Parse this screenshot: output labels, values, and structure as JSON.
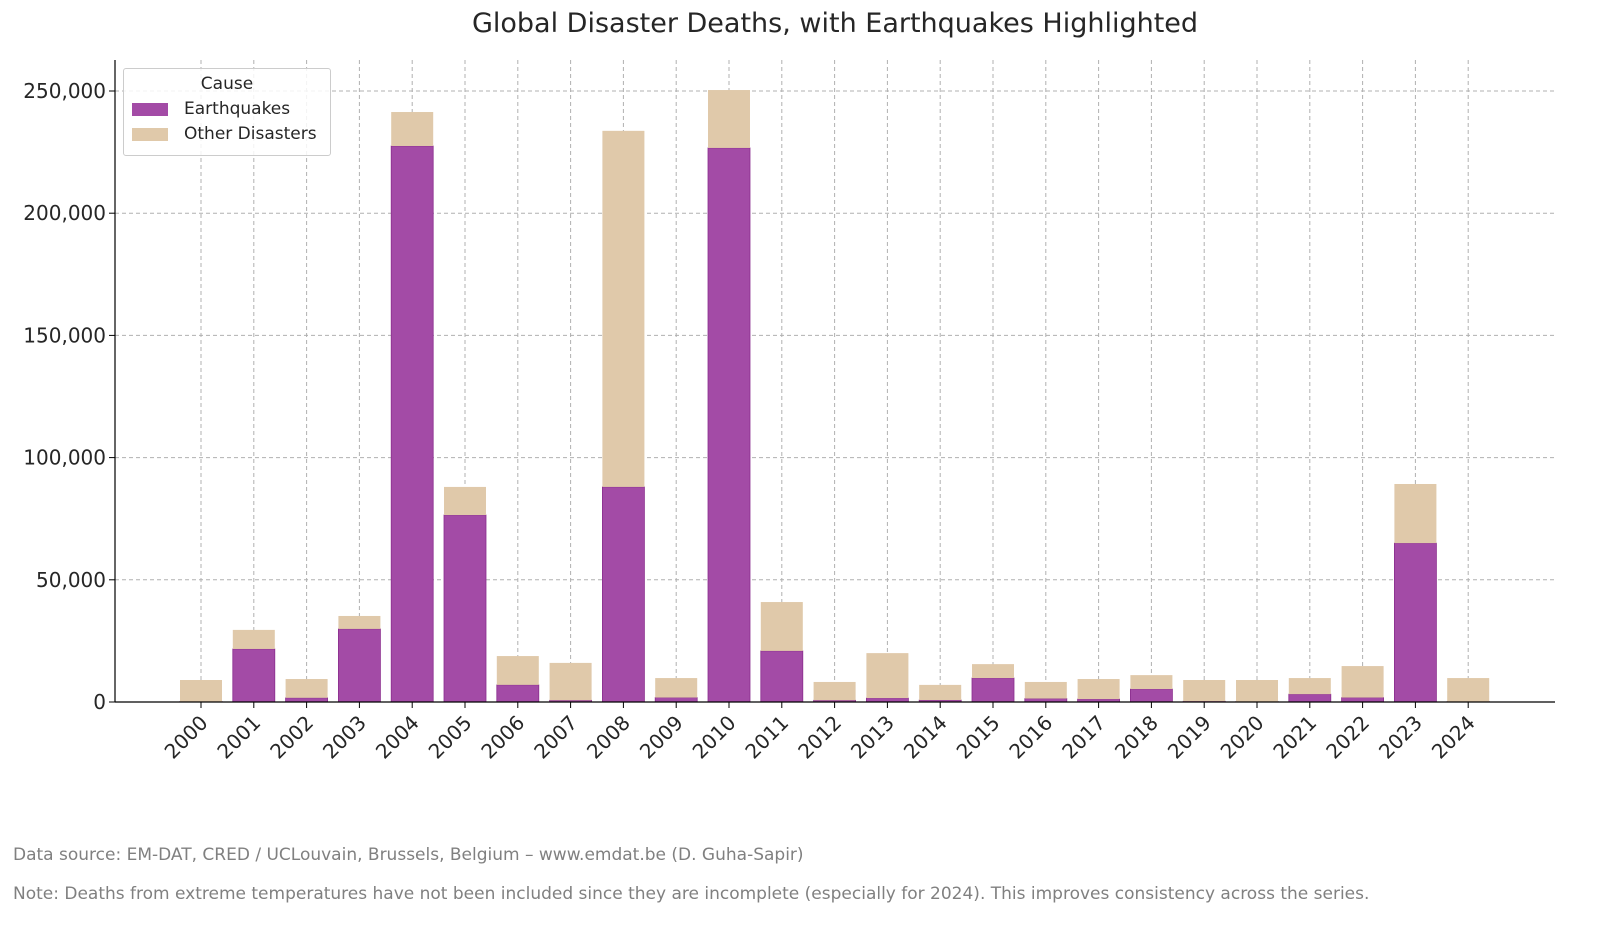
{
  "chart_data": {
    "type": "bar",
    "stacked": true,
    "title": "Global Disaster Deaths, with Earthquakes Highlighted",
    "xlabel": "",
    "ylabel": "",
    "ylim": [
      0,
      262000
    ],
    "yticks": [
      0,
      50000,
      100000,
      150000,
      200000,
      250000
    ],
    "ytick_labels": [
      "0",
      "50,000",
      "100,000",
      "150,000",
      "200,000",
      "250,000"
    ],
    "grid": true,
    "legend": {
      "title": "Cause",
      "placement": "top-left"
    },
    "categories": [
      "2000",
      "2001",
      "2002",
      "2003",
      "2004",
      "2005",
      "2006",
      "2007",
      "2008",
      "2009",
      "2010",
      "2011",
      "2012",
      "2013",
      "2014",
      "2015",
      "2016",
      "2017",
      "2018",
      "2019",
      "2020",
      "2021",
      "2022",
      "2023",
      "2024"
    ],
    "series": [
      {
        "name": "Earthquakes",
        "color": "#a34ba6",
        "values": [
          200,
          21700,
          1700,
          29900,
          227500,
          76500,
          7000,
          700,
          88000,
          1800,
          226700,
          20900,
          700,
          1600,
          800,
          9800,
          1400,
          1200,
          5300,
          300,
          200,
          3200,
          1800,
          65000,
          200
        ]
      },
      {
        "name": "Other Disasters",
        "color": "#e0c9aa",
        "values": [
          8800,
          7800,
          7700,
          5300,
          13900,
          11500,
          11800,
          15300,
          145700,
          8000,
          23700,
          20000,
          7500,
          18400,
          6200,
          5700,
          6800,
          8200,
          5700,
          8700,
          8800,
          6600,
          12900,
          24200,
          9600
        ]
      }
    ]
  },
  "footnotes": {
    "source": "Data source: EM-DAT, CRED / UCLouvain, Brussels, Belgium – www.emdat.be (D. Guha-Sapir)",
    "note": "Note: Deaths from extreme temperatures have not been included since they are incomplete (especially for 2024). This improves consistency across the series."
  }
}
